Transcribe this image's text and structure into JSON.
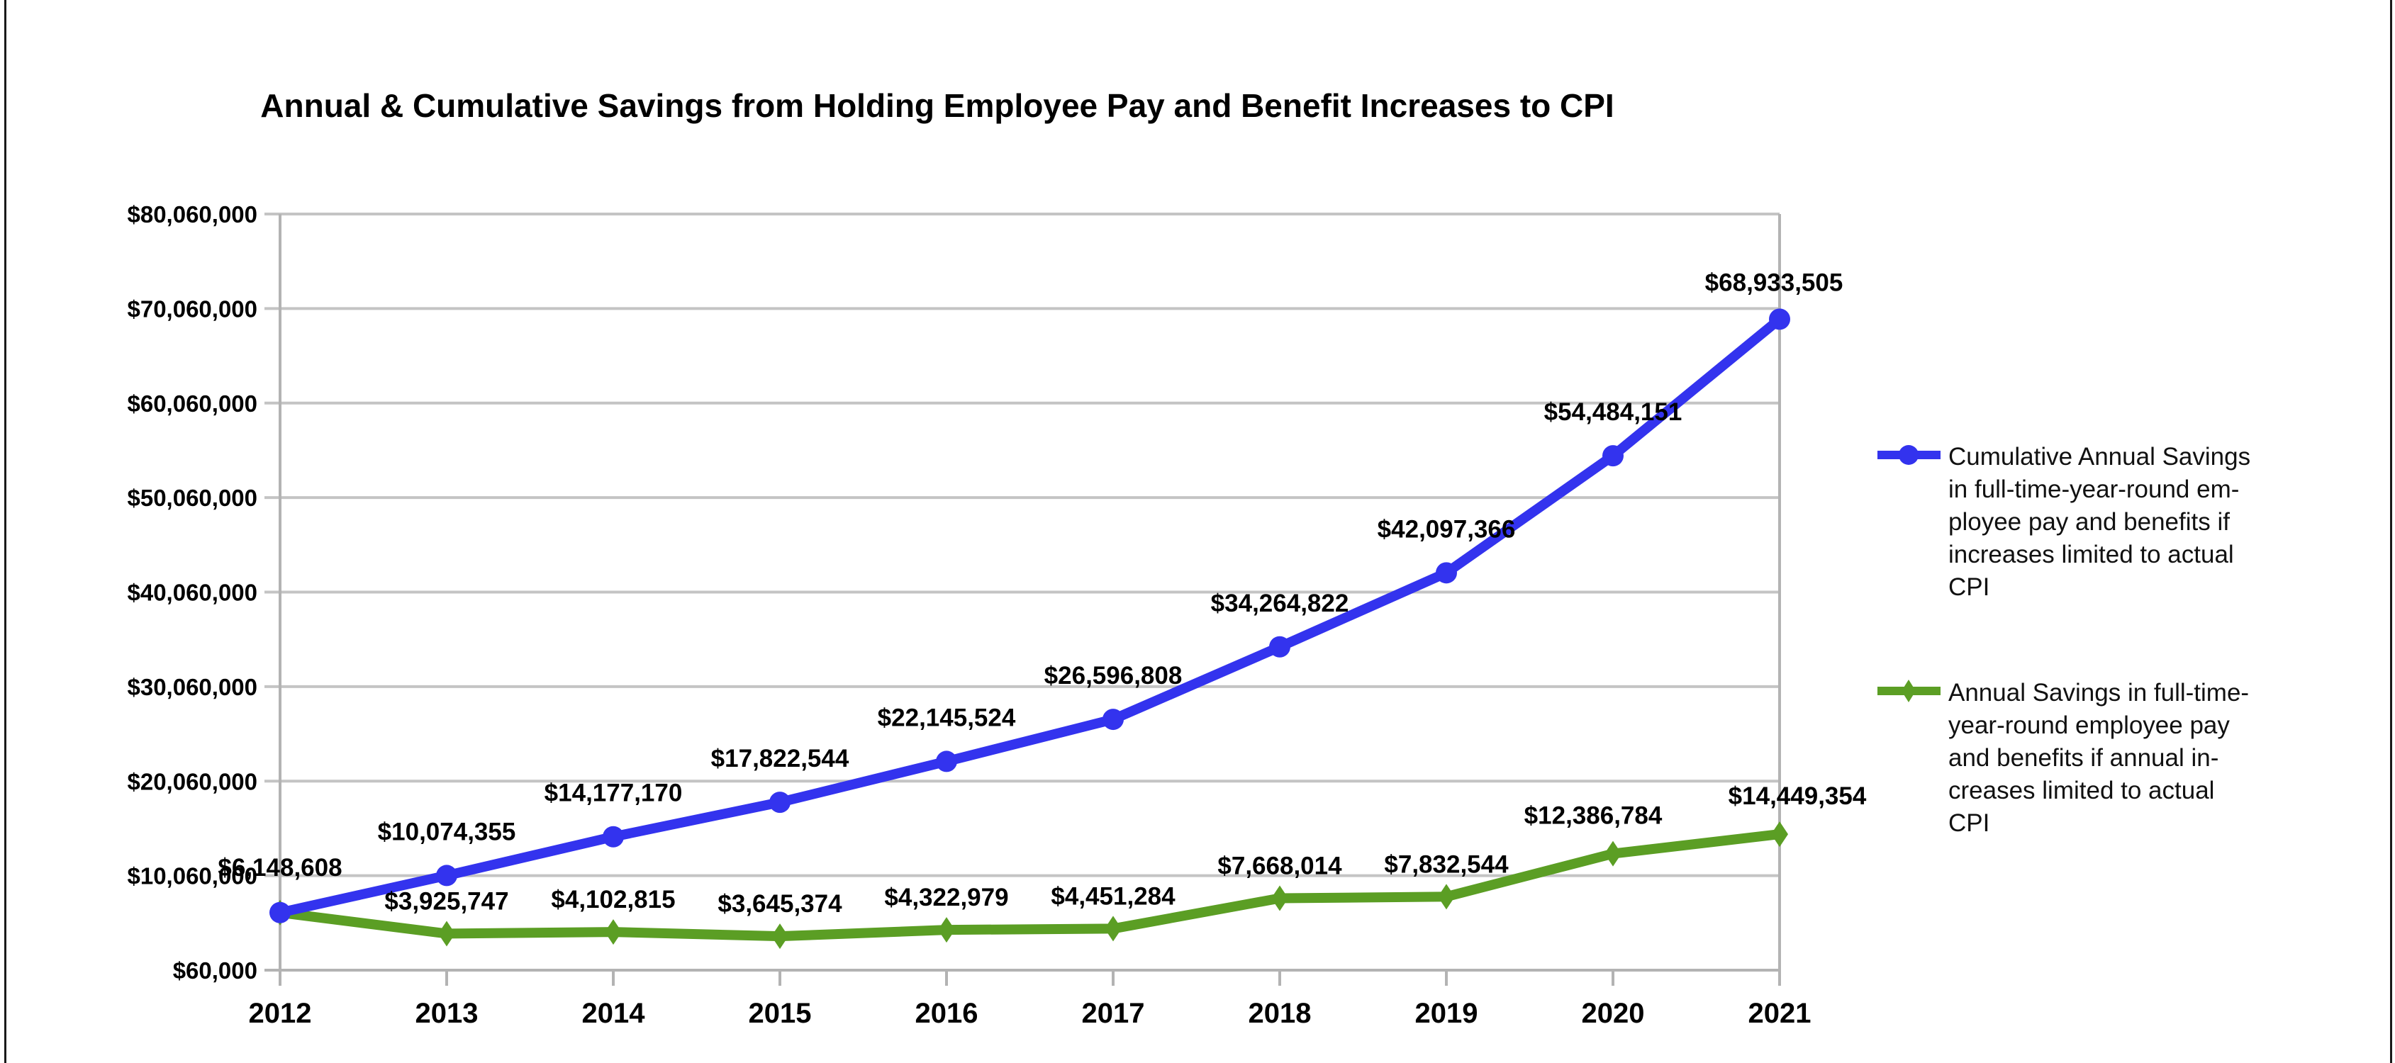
{
  "chart_data": {
    "type": "line",
    "title": "Annual & Cumulative Savings from Holding Employee Pay and Benefit Increases to CPI",
    "xlabel": "",
    "ylabel": "",
    "x": [
      "2012",
      "2013",
      "2014",
      "2015",
      "2016",
      "2017",
      "2018",
      "2019",
      "2020",
      "2021"
    ],
    "ylim": [
      60000,
      80060000
    ],
    "yticks": [
      60000,
      10060000,
      20060000,
      30060000,
      40060000,
      50060000,
      60060000,
      70060000,
      80060000
    ],
    "ytick_labels": [
      "$60,000",
      "$10,060,000",
      "$20,060,000",
      "$30,060,000",
      "$40,060,000",
      "$50,060,000",
      "$60,060,000",
      "$70,060,000",
      "$80,060,000"
    ],
    "grid": true,
    "legend_position": "right",
    "series": [
      {
        "name": "Cumulative Annual Savings in full-time-year-round employee pay and benefits if increases limited to actual CPI",
        "legend_lines": [
          "Cumulative Annual Savings",
          "in full-time-year-round em-",
          "ployee pay and benefits if",
          "increases limited to actual",
          "CPI"
        ],
        "color": "#3333ee",
        "marker": "circle",
        "values": [
          6148608,
          10074355,
          14177170,
          17822544,
          22145524,
          26596808,
          34264822,
          42097366,
          54484151,
          68933505
        ],
        "labels": [
          "$6,148,608",
          "$10,074,355",
          "$14,177,170",
          "$17,822,544",
          "$22,145,524",
          "$26,596,808",
          "$34,264,822",
          "$42,097,366",
          "$54,484,151",
          "$68,933,505"
        ]
      },
      {
        "name": "Annual Savings in full-time-year-round employee pay and benefits if annual increases limited to actual CPI",
        "legend_lines": [
          "Annual Savings in full-time-",
          "year-round employee pay",
          "and benefits if annual in-",
          "creases limited to actual",
          "CPI"
        ],
        "color": "#5b9e24",
        "marker": "diamond",
        "values": [
          6148608,
          3925747,
          4102815,
          3645374,
          4322979,
          4451284,
          7668014,
          7832544,
          12386784,
          14449354
        ],
        "labels": [
          "$6,148,608",
          "$3,925,747",
          "$4,102,815",
          "$3,645,374",
          "$4,322,979",
          "$4,451,284",
          "$7,668,014",
          "$7,832,544",
          "$12,386,784",
          "$14,449,354"
        ]
      }
    ]
  }
}
